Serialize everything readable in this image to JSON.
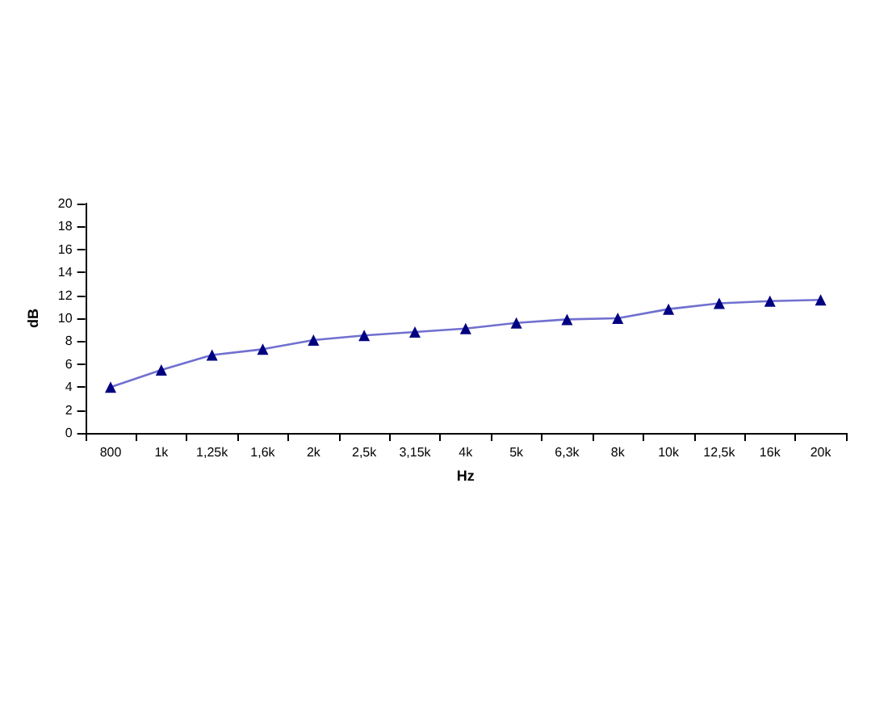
{
  "chart_data": {
    "type": "line",
    "xlabel": "Hz",
    "ylabel": "dB",
    "categories": [
      "800",
      "1k",
      "1,25k",
      "1,6k",
      "2k",
      "2,5k",
      "3,15k",
      "4k",
      "5k",
      "6,3k",
      "8k",
      "10k",
      "12,5k",
      "16k",
      "20k"
    ],
    "series": [
      {
        "color": "#000080",
        "values": [
          4.0,
          5.5,
          6.8,
          7.3,
          8.1,
          8.5,
          8.8,
          9.1,
          9.6,
          9.9,
          10.0,
          10.8,
          11.3,
          11.5,
          11.6
        ]
      }
    ],
    "ylim": [
      0,
      20
    ],
    "yticks": [
      0,
      2,
      4,
      6,
      8,
      10,
      12,
      14,
      16,
      18,
      20
    ],
    "grid": false,
    "marker": "triangle",
    "line_style": "solid"
  }
}
